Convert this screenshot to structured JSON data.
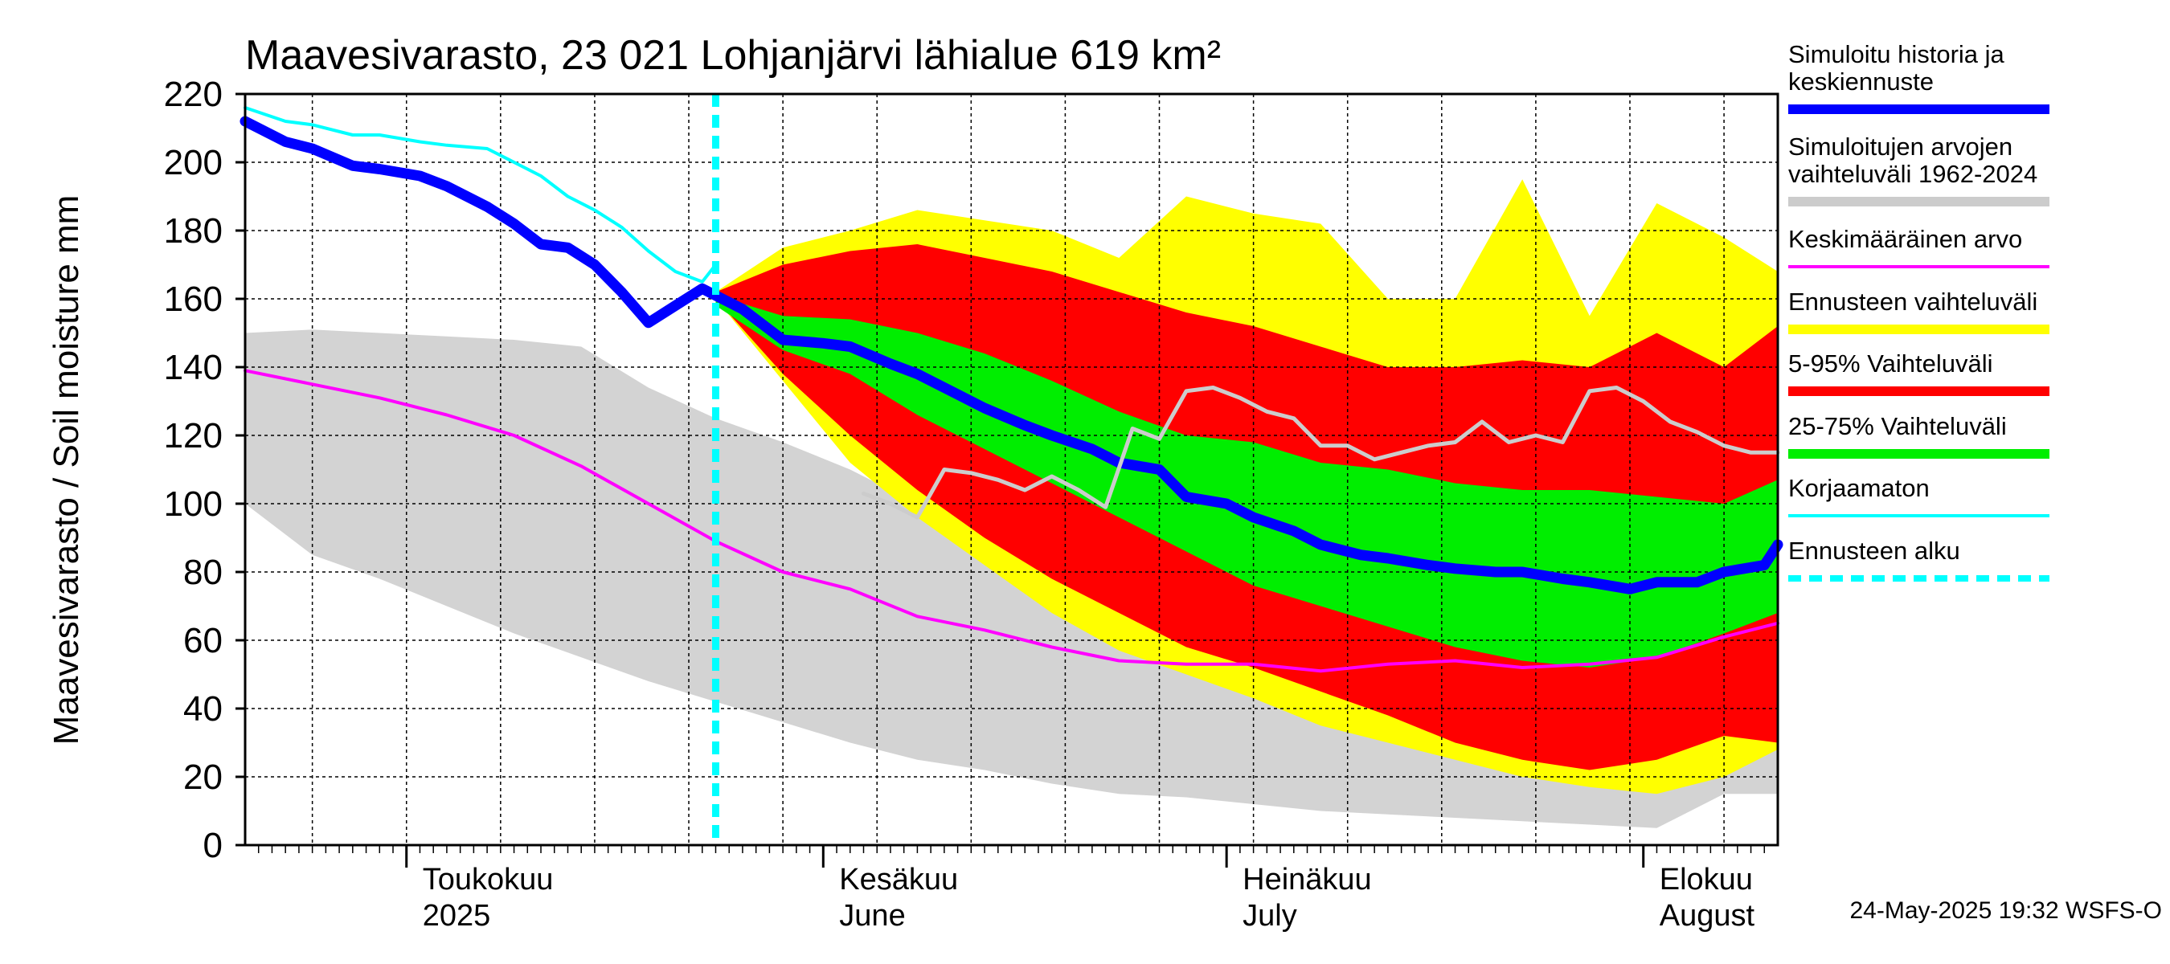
{
  "chart_data": {
    "type": "area",
    "title": "Maavesivarasto, 23 021 Lohjanjärvi lähialue 619 km²",
    "ylabel": "Maavesivarasto / Soil moisture   mm",
    "ylim": [
      0,
      220
    ],
    "yticks": [
      0,
      20,
      40,
      60,
      80,
      100,
      120,
      140,
      160,
      180,
      200,
      220
    ],
    "xrange_days": [
      0,
      114
    ],
    "x_unit": "days since 2025-04-19",
    "forecast_start_day": 35,
    "month_labels": [
      {
        "day": 12,
        "line1": "Toukokuu",
        "line2": "2025"
      },
      {
        "day": 43,
        "line1": "Kesäkuu",
        "line2": "June"
      },
      {
        "day": 73,
        "line1": "Heinäkuu",
        "line2": "July"
      },
      {
        "day": 104,
        "line1": "Elokuu",
        "line2": "August"
      }
    ],
    "month_boundaries": [
      12,
      43,
      73,
      104
    ],
    "series": [
      {
        "name": "Simuloitujen arvojen vaihteluväli 1962-2024",
        "color": "#d3d3d3",
        "kind": "band",
        "x": [
          0,
          5,
          10,
          15,
          20,
          25,
          30,
          35,
          40,
          45,
          50,
          55,
          60,
          65,
          70,
          75,
          80,
          85,
          90,
          95,
          100,
          105,
          110,
          114
        ],
        "low": [
          100,
          85,
          78,
          70,
          62,
          55,
          48,
          42,
          36,
          30,
          25,
          22,
          18,
          15,
          14,
          12,
          10,
          9,
          8,
          7,
          6,
          5,
          15,
          15
        ],
        "high": [
          150,
          151,
          150,
          149,
          148,
          146,
          134,
          125,
          118,
          110,
          100,
          93,
          83,
          75,
          66,
          62,
          57,
          54,
          52,
          50,
          50,
          52,
          56,
          58
        ]
      },
      {
        "name": "Ennusteen vaihteluväli",
        "color": "#ffff00",
        "kind": "band",
        "x": [
          35,
          40,
          45,
          50,
          55,
          60,
          65,
          70,
          75,
          80,
          85,
          90,
          95,
          100,
          105,
          110,
          114
        ],
        "low": [
          160,
          136,
          112,
          96,
          82,
          68,
          57,
          50,
          43,
          35,
          30,
          25,
          20,
          17,
          15,
          20,
          28
        ],
        "high": [
          162,
          175,
          180,
          186,
          183,
          180,
          172,
          190,
          185,
          182,
          160,
          160,
          195,
          155,
          188,
          178,
          168
        ]
      },
      {
        "name": "5-95% Vaihteluväli",
        "color": "#ff0000",
        "kind": "band",
        "x": [
          35,
          40,
          45,
          50,
          55,
          60,
          65,
          70,
          75,
          80,
          85,
          90,
          95,
          100,
          105,
          110,
          114
        ],
        "low": [
          160,
          138,
          120,
          104,
          90,
          78,
          68,
          58,
          52,
          45,
          38,
          30,
          25,
          22,
          25,
          32,
          30
        ],
        "high": [
          162,
          170,
          174,
          176,
          172,
          168,
          162,
          156,
          152,
          146,
          140,
          140,
          142,
          140,
          150,
          140,
          152
        ]
      },
      {
        "name": "25-75% Vaihteluväli",
        "color": "#00ee00",
        "kind": "band",
        "x": [
          35,
          40,
          45,
          50,
          55,
          60,
          65,
          70,
          75,
          80,
          85,
          90,
          95,
          100,
          105,
          110,
          114
        ],
        "low": [
          158,
          145,
          138,
          126,
          116,
          106,
          96,
          86,
          76,
          70,
          64,
          58,
          54,
          52,
          55,
          62,
          68
        ],
        "high": [
          161,
          155,
          154,
          150,
          144,
          136,
          127,
          120,
          118,
          112,
          110,
          106,
          104,
          104,
          102,
          100,
          107
        ]
      },
      {
        "name": "Keskimääräinen arvo",
        "color": "#ff00ff",
        "kind": "line",
        "x": [
          0,
          5,
          10,
          15,
          20,
          25,
          30,
          35,
          40,
          45,
          50,
          55,
          60,
          65,
          70,
          75,
          80,
          85,
          90,
          95,
          100,
          105,
          110,
          114
        ],
        "values": [
          139,
          135,
          131,
          126,
          120,
          111,
          100,
          89,
          80,
          75,
          67,
          63,
          58,
          54,
          53,
          53,
          51,
          53,
          54,
          52,
          53,
          55,
          61,
          65
        ]
      },
      {
        "name": "Korjaamaton",
        "color": "#00ffff",
        "kind": "line",
        "x": [
          0,
          3,
          5,
          8,
          10,
          13,
          15,
          18,
          20,
          22,
          24,
          26,
          28,
          30,
          32,
          34,
          35
        ],
        "values": [
          216,
          212,
          211,
          208,
          208,
          206,
          205,
          204,
          200,
          196,
          190,
          186,
          181,
          174,
          168,
          165,
          170
        ]
      },
      {
        "name": "Simuloitu historia ja keskiennuste",
        "color": "#0000ff",
        "kind": "line",
        "x": [
          0,
          3,
          5,
          8,
          10,
          13,
          15,
          18,
          20,
          22,
          24,
          26,
          28,
          30,
          32,
          34,
          35,
          37,
          40,
          43,
          45,
          48,
          50,
          53,
          55,
          58,
          60,
          63,
          65,
          68,
          70,
          73,
          75,
          78,
          80,
          83,
          85,
          88,
          90,
          93,
          95,
          98,
          100,
          103,
          105,
          108,
          110,
          113,
          114
        ],
        "values": [
          212,
          206,
          204,
          199,
          198,
          196,
          193,
          187,
          182,
          176,
          175,
          170,
          162,
          153,
          158,
          163,
          161,
          157,
          148,
          147,
          146,
          141,
          138,
          132,
          128,
          123,
          120,
          116,
          112,
          110,
          102,
          100,
          96,
          92,
          88,
          85,
          84,
          82,
          81,
          80,
          80,
          78,
          77,
          75,
          77,
          77,
          80,
          82,
          88
        ]
      },
      {
        "name": "Historical reference (light grey line)",
        "color": "#cccccc",
        "kind": "line",
        "x": [
          46,
          48,
          50,
          52,
          54,
          56,
          58,
          60,
          62,
          64,
          66,
          68,
          70,
          72,
          74,
          76,
          78,
          80,
          82,
          84,
          86,
          88,
          90,
          92,
          94,
          96,
          98,
          100,
          102,
          104,
          106,
          108,
          110,
          112,
          114
        ],
        "values": [
          103,
          100,
          96,
          110,
          109,
          107,
          104,
          108,
          104,
          99,
          122,
          119,
          133,
          134,
          131,
          127,
          125,
          117,
          117,
          113,
          115,
          117,
          118,
          124,
          118,
          120,
          118,
          133,
          134,
          130,
          124,
          121,
          117,
          115,
          115
        ]
      }
    ],
    "legend": [
      {
        "label": "Simuloitu historia ja keskiennuste",
        "color": "#0000ff",
        "style": "solid-thick"
      },
      {
        "label": "Simuloitujen arvojen vaihteluväli 1962-2024",
        "color": "#cccccc",
        "style": "solid-thick"
      },
      {
        "label": "Keskimääräinen arvo",
        "color": "#ff00ff",
        "style": "solid-thin"
      },
      {
        "label": "Ennusteen vaihteluväli",
        "color": "#ffff00",
        "style": "solid-thick"
      },
      {
        "label": "5-95% Vaihteluväli",
        "color": "#ff0000",
        "style": "solid-thick"
      },
      {
        "label": "25-75% Vaihteluväli",
        "color": "#00ee00",
        "style": "solid-thick"
      },
      {
        "label": "Korjaamaton",
        "color": "#00ffff",
        "style": "solid-thin"
      },
      {
        "label": "Ennusteen alku",
        "color": "#00ffff",
        "style": "dashed"
      }
    ],
    "legend_position": "right",
    "grid": true
  },
  "footer": {
    "timestamp": "24-May-2025 19:32 WSFS-O"
  }
}
